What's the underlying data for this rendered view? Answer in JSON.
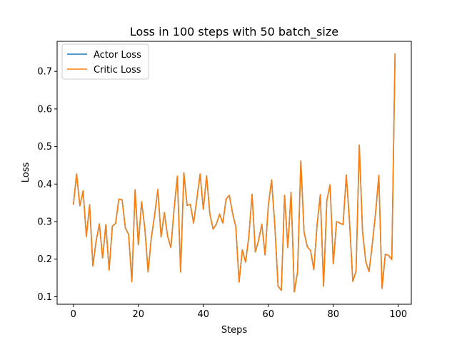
{
  "chart_data": {
    "type": "line",
    "title": "Loss in 100 steps with 50 batch_size",
    "xlabel": "Steps",
    "ylabel": "Loss",
    "xlim": [
      -5,
      104
    ],
    "ylim": [
      0.08,
      0.78
    ],
    "xticks": [
      0,
      20,
      40,
      60,
      80,
      100
    ],
    "yticks": [
      0.1,
      0.2,
      0.3,
      0.4,
      0.5,
      0.6,
      0.7
    ],
    "grid": false,
    "legend": "top-left",
    "x": [
      0,
      1,
      2,
      3,
      4,
      5,
      6,
      7,
      8,
      9,
      10,
      11,
      12,
      13,
      14,
      15,
      16,
      17,
      18,
      19,
      20,
      21,
      22,
      23,
      24,
      25,
      26,
      27,
      28,
      29,
      30,
      31,
      32,
      33,
      34,
      35,
      36,
      37,
      38,
      39,
      40,
      41,
      42,
      43,
      44,
      45,
      46,
      47,
      48,
      49,
      50,
      51,
      52,
      53,
      54,
      55,
      56,
      57,
      58,
      59,
      60,
      61,
      62,
      63,
      64,
      65,
      66,
      67,
      68,
      69,
      70,
      71,
      72,
      73,
      74,
      75,
      76,
      77,
      78,
      79,
      80,
      81,
      82,
      83,
      84,
      85,
      86,
      87,
      88,
      89,
      90,
      91,
      92,
      93,
      94,
      95,
      96,
      97,
      98,
      99
    ],
    "series": [
      {
        "name": "Actor Loss",
        "color": "#1f77b4",
        "values": [
          0.345,
          0.427,
          0.342,
          0.382,
          0.26,
          0.345,
          0.182,
          0.248,
          0.294,
          0.203,
          0.292,
          0.171,
          0.288,
          0.295,
          0.36,
          0.358,
          0.283,
          0.266,
          0.14,
          0.385,
          0.238,
          0.353,
          0.281,
          0.166,
          0.258,
          0.316,
          0.386,
          0.259,
          0.324,
          0.261,
          0.231,
          0.333,
          0.421,
          0.166,
          0.43,
          0.343,
          0.346,
          0.296,
          0.36,
          0.427,
          0.333,
          0.422,
          0.321,
          0.28,
          0.293,
          0.32,
          0.296,
          0.36,
          0.37,
          0.322,
          0.286,
          0.139,
          0.225,
          0.192,
          0.26,
          0.373,
          0.219,
          0.25,
          0.293,
          0.211,
          0.343,
          0.411,
          0.29,
          0.128,
          0.117,
          0.37,
          0.231,
          0.378,
          0.113,
          0.166,
          0.462,
          0.272,
          0.233,
          0.223,
          0.172,
          0.291,
          0.372,
          0.128,
          0.356,
          0.398,
          0.188,
          0.3,
          0.296,
          0.292,
          0.424,
          0.298,
          0.141,
          0.168,
          0.504,
          0.273,
          0.193,
          0.167,
          0.24,
          0.322,
          0.423,
          0.122,
          0.213,
          0.21,
          0.199,
          0.748
        ]
      },
      {
        "name": "Critic Loss",
        "color": "#ff7f0e",
        "values": [
          0.345,
          0.427,
          0.342,
          0.382,
          0.26,
          0.345,
          0.182,
          0.248,
          0.294,
          0.203,
          0.292,
          0.171,
          0.288,
          0.295,
          0.36,
          0.358,
          0.283,
          0.266,
          0.14,
          0.385,
          0.238,
          0.353,
          0.281,
          0.166,
          0.258,
          0.316,
          0.386,
          0.259,
          0.324,
          0.261,
          0.231,
          0.333,
          0.421,
          0.166,
          0.43,
          0.343,
          0.346,
          0.296,
          0.36,
          0.427,
          0.333,
          0.422,
          0.321,
          0.28,
          0.293,
          0.32,
          0.296,
          0.36,
          0.37,
          0.322,
          0.286,
          0.139,
          0.225,
          0.192,
          0.26,
          0.373,
          0.219,
          0.25,
          0.293,
          0.211,
          0.343,
          0.411,
          0.29,
          0.128,
          0.117,
          0.37,
          0.231,
          0.378,
          0.113,
          0.166,
          0.462,
          0.272,
          0.233,
          0.223,
          0.172,
          0.291,
          0.372,
          0.128,
          0.356,
          0.398,
          0.188,
          0.3,
          0.296,
          0.292,
          0.424,
          0.298,
          0.141,
          0.168,
          0.504,
          0.273,
          0.193,
          0.167,
          0.24,
          0.322,
          0.423,
          0.122,
          0.213,
          0.21,
          0.199,
          0.748
        ]
      }
    ]
  }
}
